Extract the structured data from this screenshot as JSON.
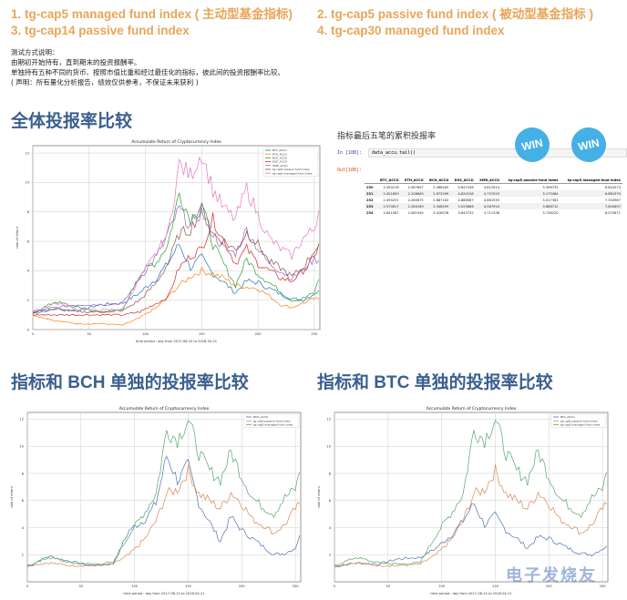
{
  "index_list": [
    {
      "label": "1. tg-cap5 managed fund index ( 主动型基金指标)"
    },
    {
      "label": "2. tg-cap5 passive fund index ( 被动型基金指标 )"
    },
    {
      "label": "3. tg-cap14 passive fund index"
    },
    {
      "label": "4. tg-cap30 managed fund index"
    }
  ],
  "notes": {
    "line1": "测试方式说明：",
    "line2": "由期初开始持有，直到期末的投资报酬率。",
    "line3": "单独持有五种不同的货币、按照市值比重和经过最佳化的指标，彼此间的投资报酬率比较。",
    "line4": "( 声明：所有量化分析报告，绩效仅供参考，不保证未来获利 )"
  },
  "sections": {
    "overall_title": "全体投报率比较",
    "bch_title": "指标和 BCH 单独的投报率比较",
    "btc_title": "指标和 BTC 单独的投报率比较"
  },
  "table": {
    "title": "指标最后五笔的累积投报率",
    "in_prompt": "In [108]:",
    "code": "data_accu.tail()",
    "out_prompt": "Out[108]:",
    "columns": [
      "",
      "BTC_ACCU",
      "ETH_ACCU",
      "BCH_ACCU",
      "EOS_ACCU",
      "XMR_ACCU",
      "tg-cap5 passive fund index",
      "tg-cap5 managed fund index"
    ],
    "rows": [
      [
        "250",
        "2.450218",
        "2.087697",
        "2.488400",
        "4.847436",
        "4.812614",
        "5.398733",
        "6.843273"
      ],
      [
        "251",
        "2.451859",
        "2.108640",
        "2.673299",
        "4.820156",
        "4.757923",
        "5.175484",
        "6.881979"
      ],
      [
        "252",
        "2.494251",
        "2.280675",
        "2.887162",
        "4.888087",
        "4.861555",
        "5.417361",
        "7.334987"
      ],
      [
        "253",
        "2.570817",
        "2.284169",
        "3.348099",
        "5.025886",
        "4.587924",
        "5.688712",
        "7.800697"
      ],
      [
        "254",
        "2.641587",
        "2.081934",
        "3.416078",
        "5.843732",
        "4.711338",
        "5.736220",
        "8.075871"
      ]
    ],
    "badges": [
      "WIN",
      "WIN"
    ]
  },
  "colors": {
    "accent_orange": "#e8a55a",
    "title_blue": "#3b5f8f",
    "win_blue": "#45b0e6",
    "btc": "#1f77b4",
    "eth": "#ff7f0e",
    "bch": "#2ca02c",
    "eos": "#d62728",
    "xmr": "#9467bd",
    "passive": "#8c564b",
    "managed": "#e377c2"
  },
  "watermark": "电子发烧友",
  "chart_data": [
    {
      "type": "line",
      "title": "Accumulate Return of Cryptocurrency Index",
      "xlabel": "time period : day from 2017-08-10 to 2018-04-21",
      "ylabel": "rate of return",
      "xlim": [
        0,
        255
      ],
      "ylim": [
        0,
        12.5
      ],
      "xticks": [
        0,
        50,
        100,
        150,
        200,
        250
      ],
      "yticks": [
        0,
        2,
        4,
        6,
        8,
        10,
        12
      ],
      "grid": true,
      "legend_position": "upper right",
      "x": [
        0,
        20,
        40,
        60,
        80,
        95,
        110,
        120,
        130,
        140,
        150,
        160,
        170,
        180,
        190,
        200,
        210,
        220,
        230,
        240,
        250,
        254
      ],
      "series": [
        {
          "name": "BTC_ACCU",
          "values": [
            1.1,
            1.4,
            1.3,
            1.7,
            1.8,
            2.5,
            3.5,
            4.5,
            5.8,
            4.2,
            4.9,
            3.8,
            3.2,
            2.5,
            3.3,
            3.2,
            2.8,
            2.4,
            2.1,
            2.0,
            2.45,
            2.64
          ]
        },
        {
          "name": "ETH_ACCU",
          "values": [
            1.0,
            0.6,
            0.4,
            0.4,
            0.3,
            0.8,
            1.5,
            2.2,
            3.0,
            3.6,
            4.0,
            3.8,
            3.5,
            3.0,
            2.9,
            2.8,
            2.3,
            1.7,
            1.5,
            1.8,
            2.1,
            2.08
          ]
        },
        {
          "name": "BCH_ACCU",
          "values": [
            1.1,
            1.9,
            1.5,
            1.2,
            1.3,
            3.8,
            4.6,
            5.8,
            9.3,
            7.5,
            8.6,
            5.8,
            4.4,
            3.0,
            4.8,
            3.8,
            3.2,
            2.6,
            2.0,
            2.1,
            2.5,
            3.42
          ]
        },
        {
          "name": "EOS_ACCU",
          "values": [
            1.0,
            1.0,
            1.0,
            1.0,
            1.0,
            1.2,
            1.8,
            2.2,
            4.2,
            5.0,
            5.5,
            7.5,
            6.0,
            4.5,
            5.5,
            4.5,
            4.0,
            3.5,
            3.3,
            4.0,
            4.85,
            5.84
          ]
        },
        {
          "name": "XMR_ACCU",
          "values": [
            1.2,
            1.5,
            1.7,
            1.7,
            1.8,
            3.5,
            5.0,
            6.5,
            8.2,
            7.0,
            8.0,
            6.5,
            5.5,
            5.2,
            6.8,
            5.5,
            4.5,
            4.0,
            3.5,
            4.0,
            4.81,
            4.71
          ]
        },
        {
          "name": "tg-cap5 passive fund index",
          "values": [
            1.2,
            1.4,
            1.2,
            1.2,
            1.3,
            2.0,
            3.2,
            4.5,
            6.5,
            6.8,
            8.2,
            6.5,
            6.0,
            5.4,
            6.6,
            5.8,
            4.6,
            4.2,
            3.6,
            4.2,
            5.4,
            5.74
          ]
        },
        {
          "name": "tg-cap5 managed fund index",
          "values": [
            1.2,
            1.8,
            1.4,
            1.3,
            1.4,
            3.5,
            5.2,
            6.5,
            11.2,
            10.5,
            12.0,
            9.5,
            8.2,
            7.5,
            9.6,
            7.8,
            6.2,
            5.5,
            5.0,
            6.2,
            6.85,
            8.08
          ]
        }
      ]
    },
    {
      "type": "line",
      "title": "Accumulate Return of Cryptocurrency Index",
      "xlabel": "time period : day from 2017-08-10 to 2018-04-21",
      "ylabel": "rate of return",
      "xlim": [
        0,
        255
      ],
      "ylim": [
        0,
        12.5
      ],
      "xticks": [
        0,
        50,
        100,
        150,
        200,
        250
      ],
      "yticks": [
        2,
        4,
        6,
        8,
        10,
        12
      ],
      "grid": true,
      "legend_position": "upper right",
      "x": [
        0,
        20,
        40,
        60,
        80,
        95,
        110,
        120,
        130,
        140,
        150,
        160,
        170,
        180,
        190,
        200,
        210,
        220,
        230,
        240,
        250,
        254
      ],
      "series": [
        {
          "name": "BCH_ACCU",
          "values": [
            1.1,
            1.9,
            1.5,
            1.2,
            1.3,
            3.8,
            4.6,
            5.8,
            9.3,
            7.5,
            8.6,
            5.8,
            4.4,
            3.0,
            4.8,
            3.8,
            3.2,
            2.6,
            2.0,
            2.1,
            2.5,
            3.42
          ]
        },
        {
          "name": "tg-cap5 passive fund index",
          "values": [
            1.2,
            1.4,
            1.2,
            1.2,
            1.3,
            2.0,
            3.2,
            4.5,
            6.5,
            6.8,
            8.2,
            6.5,
            6.0,
            5.4,
            6.6,
            5.8,
            4.6,
            4.2,
            3.6,
            4.2,
            5.4,
            5.74
          ]
        },
        {
          "name": "tg-cap5 managed fund index",
          "values": [
            1.2,
            1.8,
            1.4,
            1.3,
            1.4,
            3.5,
            5.2,
            6.5,
            11.2,
            10.5,
            12.0,
            9.5,
            8.2,
            7.5,
            9.6,
            7.8,
            6.2,
            5.5,
            5.0,
            6.2,
            6.85,
            8.08
          ]
        }
      ]
    },
    {
      "type": "line",
      "title": "Accumulate Return of Cryptocurrency Index",
      "xlabel": "time period : day from 2017-08-10 to 2018-04-21",
      "ylabel": "rate of return",
      "xlim": [
        0,
        255
      ],
      "ylim": [
        0,
        12.5
      ],
      "xticks": [
        0,
        50,
        100,
        150,
        200,
        250
      ],
      "yticks": [
        2,
        4,
        6,
        8,
        10,
        12
      ],
      "grid": true,
      "legend_position": "upper right",
      "x": [
        0,
        20,
        40,
        60,
        80,
        95,
        110,
        120,
        130,
        140,
        150,
        160,
        170,
        180,
        190,
        200,
        210,
        220,
        230,
        240,
        250,
        254
      ],
      "series": [
        {
          "name": "BTC_ACCU",
          "values": [
            1.1,
            1.4,
            1.3,
            1.7,
            1.8,
            2.5,
            3.5,
            4.5,
            5.8,
            4.2,
            4.9,
            3.8,
            3.2,
            2.5,
            3.3,
            3.2,
            2.8,
            2.4,
            2.1,
            2.0,
            2.45,
            2.64
          ]
        },
        {
          "name": "tg-cap5 passive fund index",
          "values": [
            1.2,
            1.4,
            1.2,
            1.2,
            1.3,
            2.0,
            3.2,
            4.5,
            6.5,
            6.8,
            8.2,
            6.5,
            6.0,
            5.4,
            6.6,
            5.8,
            4.6,
            4.2,
            3.6,
            4.2,
            5.4,
            5.74
          ]
        },
        {
          "name": "tg-cap5 managed fund index",
          "values": [
            1.2,
            1.8,
            1.4,
            1.3,
            1.4,
            3.5,
            5.2,
            6.5,
            11.2,
            10.5,
            12.0,
            9.5,
            8.2,
            7.5,
            9.6,
            7.8,
            6.2,
            5.5,
            5.0,
            6.2,
            6.85,
            8.08
          ]
        }
      ]
    }
  ]
}
